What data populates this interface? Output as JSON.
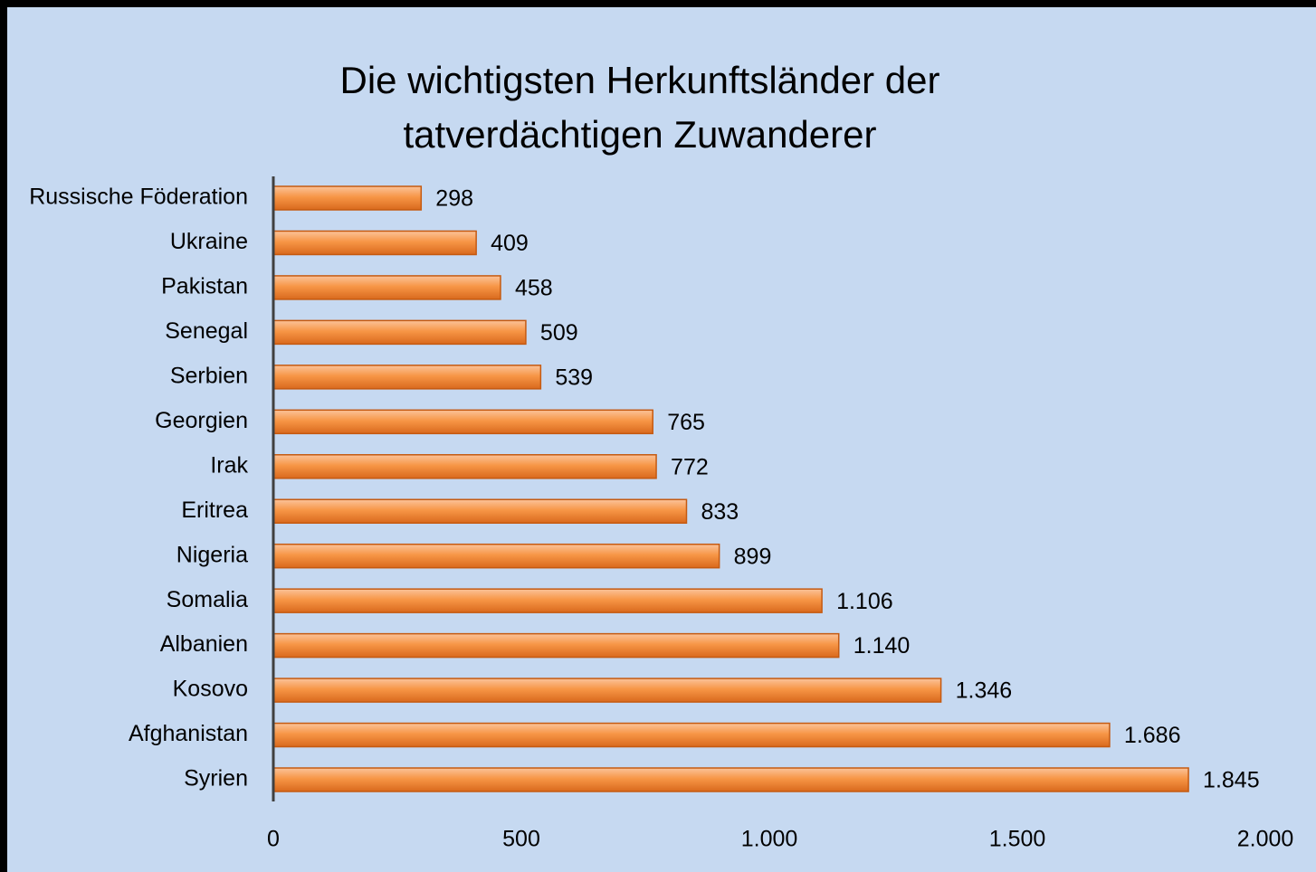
{
  "chart_data": {
    "type": "bar",
    "orientation": "horizontal",
    "title": [
      "Die wichtigsten Herkunftsländer der",
      "tatverdächtigen Zuwanderer"
    ],
    "categories": [
      "Russische Föderation",
      "Ukraine",
      "Pakistan",
      "Senegal",
      "Serbien",
      "Georgien",
      "Irak",
      "Eritrea",
      "Nigeria",
      "Somalia",
      "Albanien",
      "Kosovo",
      "Afghanistan",
      "Syrien"
    ],
    "values": [
      298,
      409,
      458,
      509,
      539,
      765,
      772,
      833,
      899,
      1106,
      1140,
      1346,
      1686,
      1845
    ],
    "value_labels": [
      "298",
      "409",
      "458",
      "509",
      "539",
      "765",
      "772",
      "833",
      "899",
      "1.106",
      "1.140",
      "1.346",
      "1.686",
      "1.845"
    ],
    "color": "#f79646",
    "xlim": [
      0,
      2000
    ],
    "xticks": [
      0,
      500,
      {
        "value": 1000,
        "label": "1.000"
      },
      {
        "value": 1500,
        "label": "1.500"
      },
      {
        "value": 2000,
        "label": "2.000"
      }
    ],
    "grid": false
  }
}
